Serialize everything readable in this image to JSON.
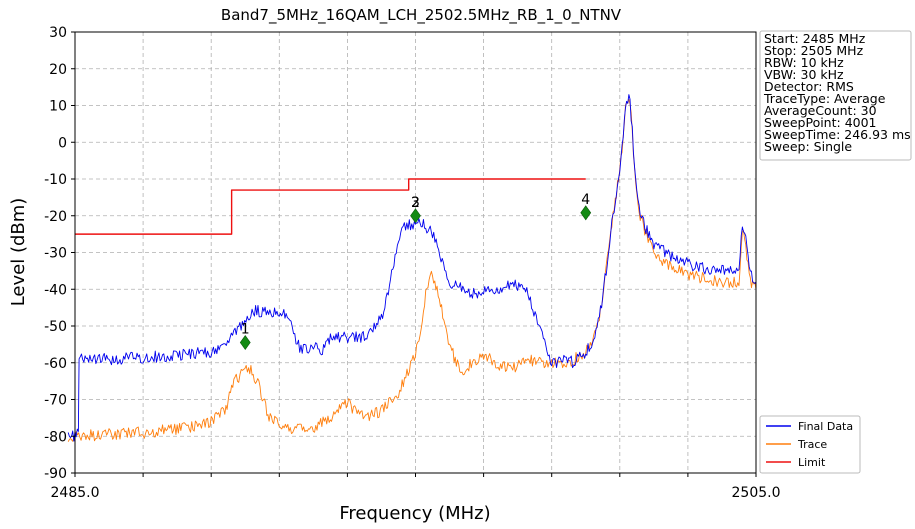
{
  "chart_data": {
    "type": "line",
    "title": "Band7_5MHz_16QAM_LCH_2502.5MHz_RB_1_0_NTNV",
    "xlabel": "Frequency (MHz)",
    "ylabel": "Level (dBm)",
    "xlim": [
      2485.0,
      2505.0
    ],
    "ylim": [
      -90,
      30
    ],
    "x_tick_labels": [
      "2485.0",
      "2505.0"
    ],
    "y_ticks": [
      30,
      20,
      10,
      0,
      -10,
      -20,
      -30,
      -40,
      -50,
      -60,
      -70,
      -80,
      -90
    ],
    "grid": true,
    "legend_position": "bottom-right",
    "info_box": [
      "Start: 2485 MHz",
      "Stop: 2505 MHz",
      "RBW: 10 kHz",
      "VBW: 30 kHz",
      "Detector: RMS",
      "TraceType: Average",
      "AverageCount: 30",
      "SweepPoint: 4001",
      "SweepTime: 246.93 ms",
      "Sweep: Single"
    ],
    "series": [
      {
        "name": "Final Data",
        "color": "#0000ee",
        "x": [
          2484.8,
          2485.0,
          2485.1,
          2485.12,
          2486.0,
          2487.0,
          2488.0,
          2489.0,
          2489.1,
          2489.3,
          2489.7,
          2490.2,
          2491.0,
          2491.2,
          2491.6,
          2492.0,
          2492.3,
          2492.5,
          2492.8,
          2493.5,
          2494.0,
          2494.3,
          2494.6,
          2495.0,
          2495.2,
          2495.5,
          2496.0,
          2496.6,
          2497.0,
          2497.1,
          2497.5,
          2498.0,
          2498.2,
          2499.0,
          2499.5,
          2499.65,
          2500.0,
          2500.2,
          2500.4,
          2500.6,
          2500.8,
          2501.0,
          2501.2,
          2501.3,
          2501.4,
          2501.5,
          2501.6,
          2501.8,
          2502.0,
          2502.5,
          2503.0,
          2503.5,
          2504.0,
          2504.5,
          2504.6,
          2504.7,
          2504.8,
          2504.9,
          2505.0
        ],
        "y": [
          -80,
          -80,
          -79,
          -59,
          -59,
          -58.5,
          -58,
          -57,
          -57,
          -56.5,
          -52,
          -46,
          -46,
          -47,
          -56,
          -56,
          -56.5,
          -53,
          -53,
          -53,
          -48,
          -36,
          -23,
          -22,
          -22,
          -25,
          -38,
          -41,
          -41,
          -40,
          -39.5,
          -39,
          -39,
          -60,
          -59,
          -60,
          -57,
          -55,
          -48,
          -35,
          -20,
          -8,
          12,
          12,
          -2,
          -14,
          -20,
          -24,
          -28,
          -31,
          -33,
          -34.5,
          -35,
          -35.5,
          -22,
          -25,
          -34,
          -37,
          -38
        ]
      },
      {
        "name": "Trace",
        "color": "#ff7f0e",
        "x": [
          2484.8,
          2485.0,
          2486.0,
          2487.0,
          2488.0,
          2488.5,
          2489.0,
          2489.4,
          2489.7,
          2490.1,
          2490.4,
          2490.7,
          2491.0,
          2491.5,
          2492.0,
          2492.5,
          2492.8,
          2493.0,
          2493.5,
          2494.0,
          2494.5,
          2495.0,
          2495.2,
          2495.3,
          2495.5,
          2495.7,
          2496.0,
          2496.2,
          2496.4,
          2496.6,
          2497.0,
          2497.5,
          2498.0,
          2498.3,
          2498.6,
          2499.0,
          2499.5,
          2500.0,
          2500.2,
          2500.4,
          2500.6,
          2500.8,
          2501.0,
          2501.2,
          2501.3,
          2501.4,
          2501.5,
          2501.6,
          2501.8,
          2502.0,
          2502.5,
          2503.0,
          2503.5,
          2504.0,
          2504.5,
          2504.6,
          2504.7,
          2504.8,
          2504.9,
          2505.0
        ],
        "y": [
          -80,
          -80,
          -79.5,
          -79,
          -78,
          -77.5,
          -76,
          -73,
          -65,
          -61,
          -66,
          -75,
          -77,
          -78,
          -78,
          -75,
          -72,
          -71,
          -75,
          -73,
          -68,
          -58,
          -50,
          -40,
          -36,
          -42,
          -55,
          -60,
          -64,
          -60,
          -58,
          -61,
          -61,
          -59,
          -60,
          -60,
          -60,
          -57,
          -55,
          -48,
          -35,
          -20,
          -8,
          12,
          12,
          -2,
          -14,
          -20,
          -26,
          -30,
          -34,
          -36,
          -37,
          -38,
          -38,
          -23,
          -28,
          -36,
          -39,
          -40
        ]
      },
      {
        "name": "Limit",
        "color": "#ee1111",
        "x": [
          2485.0,
          2489.6,
          2489.6,
          2494.8,
          2494.8,
          2500.0
        ],
        "y": [
          -25,
          -25,
          -13,
          -13,
          -10,
          -10
        ]
      }
    ],
    "markers": [
      {
        "label": "1",
        "x": 2490.0,
        "y": -54.5
      },
      {
        "label": "2",
        "x": 2495.0,
        "y": -20.0
      },
      {
        "label": "3",
        "x": 2495.0,
        "y": -20.0
      },
      {
        "label": "4",
        "x": 2500.0,
        "y": -19.2
      }
    ]
  }
}
